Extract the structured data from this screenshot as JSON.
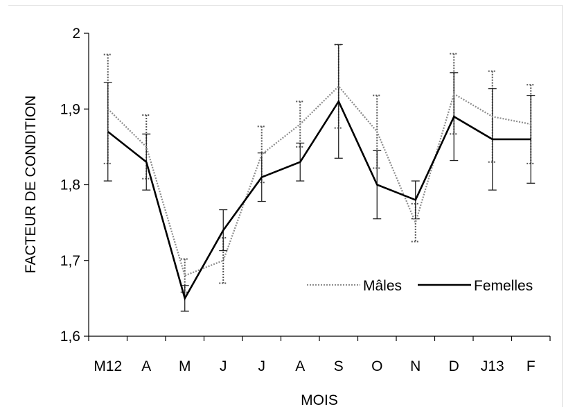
{
  "chart_data": {
    "type": "line",
    "title": "",
    "xlabel": "MOIS",
    "ylabel": "FACTEUR DE CONDITION",
    "ylim": [
      1.6,
      2.0
    ],
    "yticks": [
      1.6,
      1.7,
      1.8,
      1.9,
      2.0
    ],
    "ytick_labels": [
      "1,6",
      "1,7",
      "1,8",
      "1,9",
      "2"
    ],
    "categories": [
      "M12",
      "A",
      "M",
      "J",
      "J",
      "A",
      "S",
      "O",
      "N",
      "D",
      "J13",
      "F"
    ],
    "legend_position": "inside-bottom-right",
    "grid": false,
    "series": [
      {
        "name": "Mâles",
        "style": "dotted",
        "color": "#8c8c8c",
        "values": [
          1.9,
          1.85,
          1.68,
          1.7,
          1.84,
          1.88,
          1.93,
          1.87,
          1.75,
          1.92,
          1.89,
          1.88
        ],
        "error": [
          0.072,
          0.042,
          0.022,
          0.03,
          0.037,
          0.03,
          0.055,
          0.048,
          0.025,
          0.053,
          0.06,
          0.052
        ]
      },
      {
        "name": "Femelles",
        "style": "solid",
        "color": "#000000",
        "values": [
          1.87,
          1.83,
          1.65,
          1.74,
          1.81,
          1.83,
          1.91,
          1.8,
          1.78,
          1.89,
          1.86,
          1.86
        ],
        "error": [
          0.065,
          0.037,
          0.017,
          0.027,
          0.032,
          0.025,
          0.075,
          0.045,
          0.025,
          0.058,
          0.067,
          0.058
        ]
      }
    ]
  }
}
